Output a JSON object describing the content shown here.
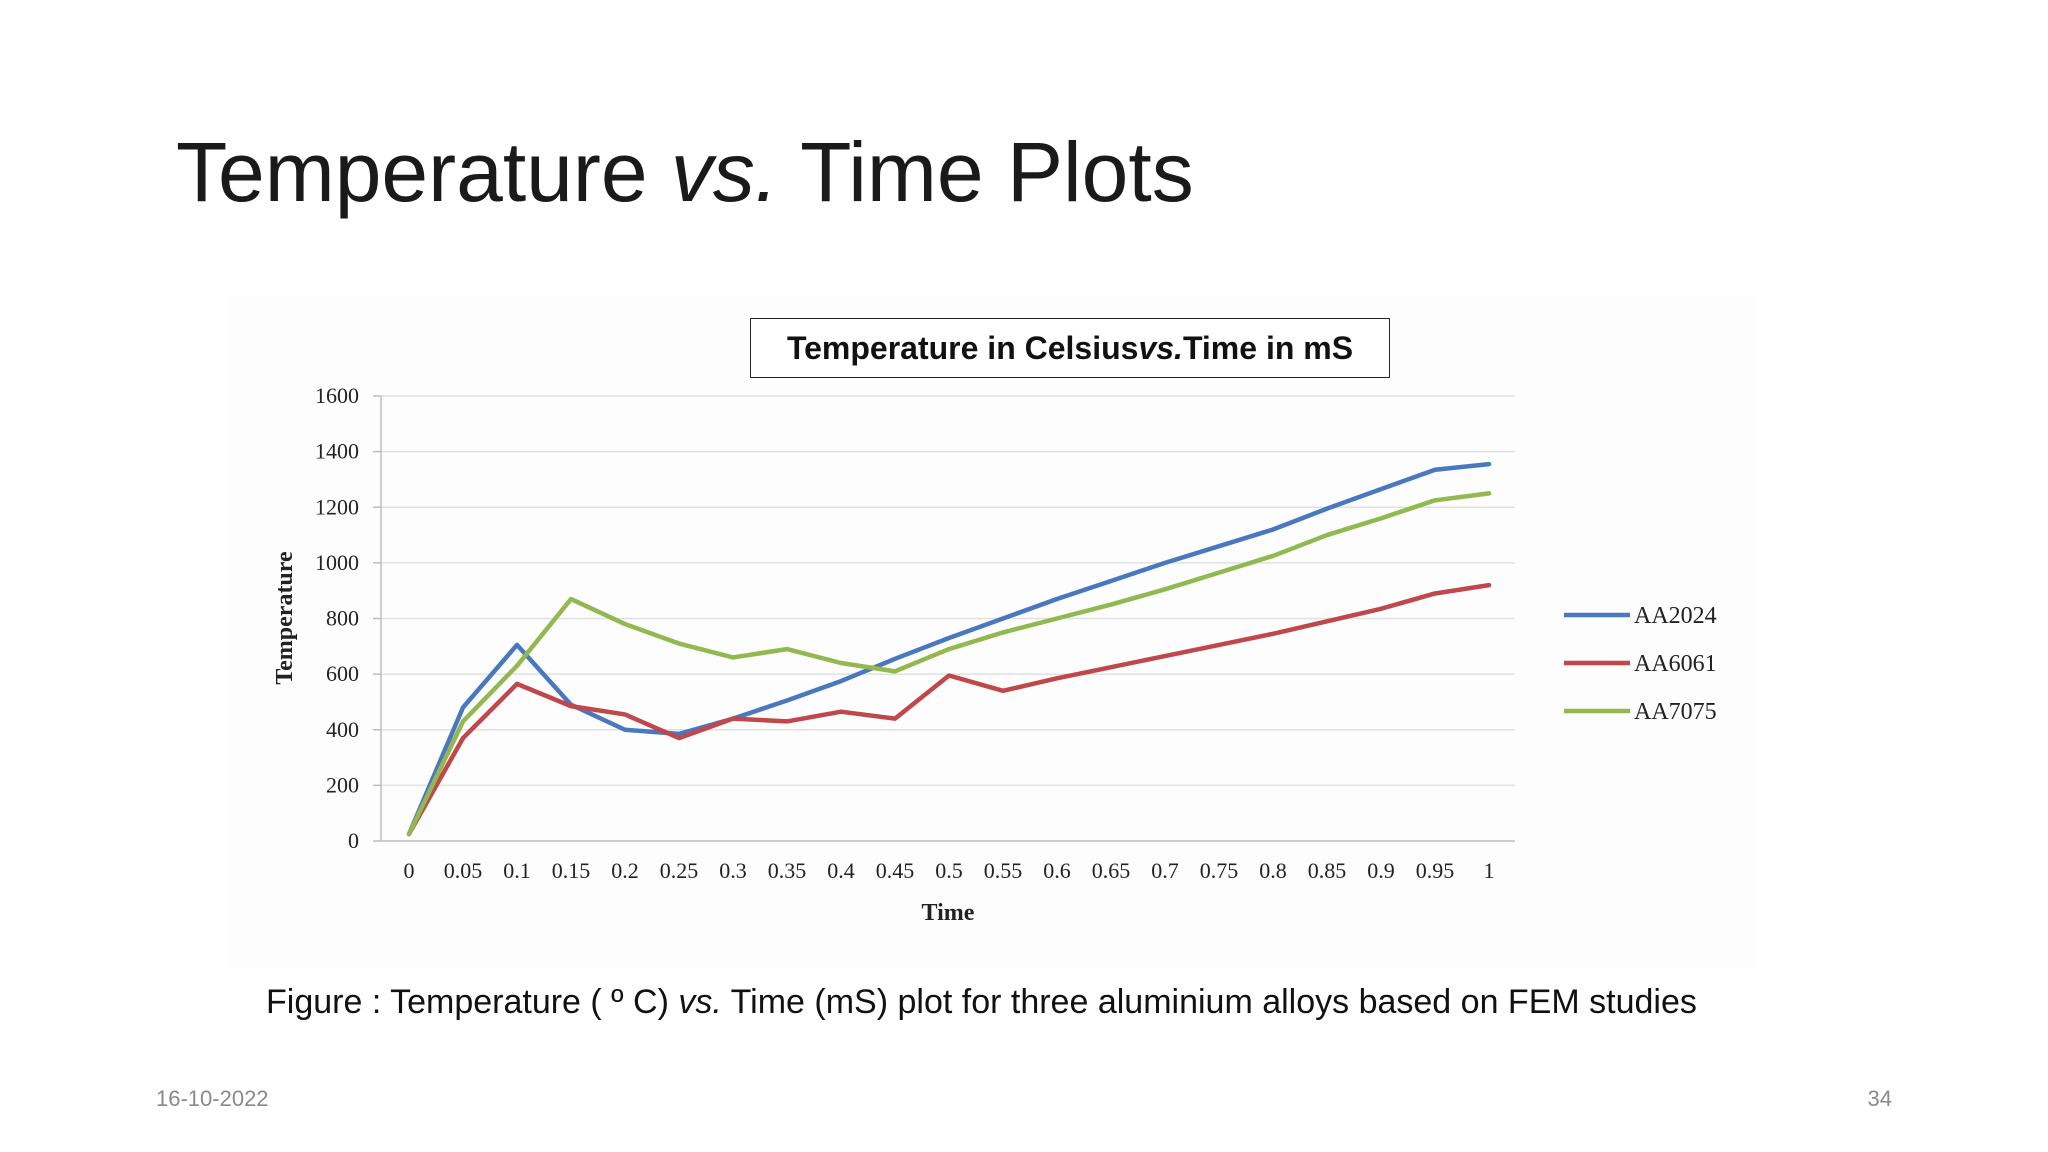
{
  "slide": {
    "title_part1": "Temperature ",
    "title_italic": "vs.",
    "title_part2": " Time Plots",
    "caption_part1": "Figure :  Temperature ( º C) ",
    "caption_italic": "vs.",
    "caption_part2": " Time (mS) plot for three aluminium alloys based on FEM studies",
    "date": "16-10-2022",
    "page_number": "34"
  },
  "chart_data": {
    "type": "line",
    "title_part1": "Temperature in Celsius ",
    "title_italic": "vs.",
    "title_part2": " Time in mS",
    "xlabel": "Time",
    "ylabel": "Temperature",
    "categories": [
      "0",
      "0.05",
      "0.1",
      "0.15",
      "0.2",
      "0.25",
      "0.3",
      "0.35",
      "0.4",
      "0.45",
      "0.5",
      "0.55",
      "0.6",
      "0.65",
      "0.7",
      "0.75",
      "0.8",
      "0.85",
      "0.9",
      "0.95",
      "1"
    ],
    "ylim": [
      0,
      1600
    ],
    "yticks": [
      0,
      200,
      400,
      600,
      800,
      1000,
      1200,
      1400,
      1600
    ],
    "grid": true,
    "legend_position": "right",
    "series": [
      {
        "name": "AA2024",
        "color": "#4a78bf",
        "values": [
          25,
          480,
          705,
          490,
          400,
          385,
          440,
          505,
          575,
          655,
          730,
          800,
          870,
          935,
          1000,
          1060,
          1120,
          1195,
          1265,
          1335,
          1355
        ]
      },
      {
        "name": "AA6061",
        "color": "#c0474b",
        "values": [
          25,
          370,
          565,
          485,
          455,
          370,
          440,
          430,
          465,
          440,
          595,
          540,
          585,
          625,
          665,
          705,
          745,
          790,
          835,
          890,
          920
        ]
      },
      {
        "name": "AA7075",
        "color": "#93b84f",
        "values": [
          25,
          430,
          630,
          870,
          780,
          710,
          660,
          690,
          640,
          610,
          690,
          750,
          800,
          850,
          905,
          965,
          1025,
          1100,
          1160,
          1225,
          1250
        ]
      }
    ]
  }
}
